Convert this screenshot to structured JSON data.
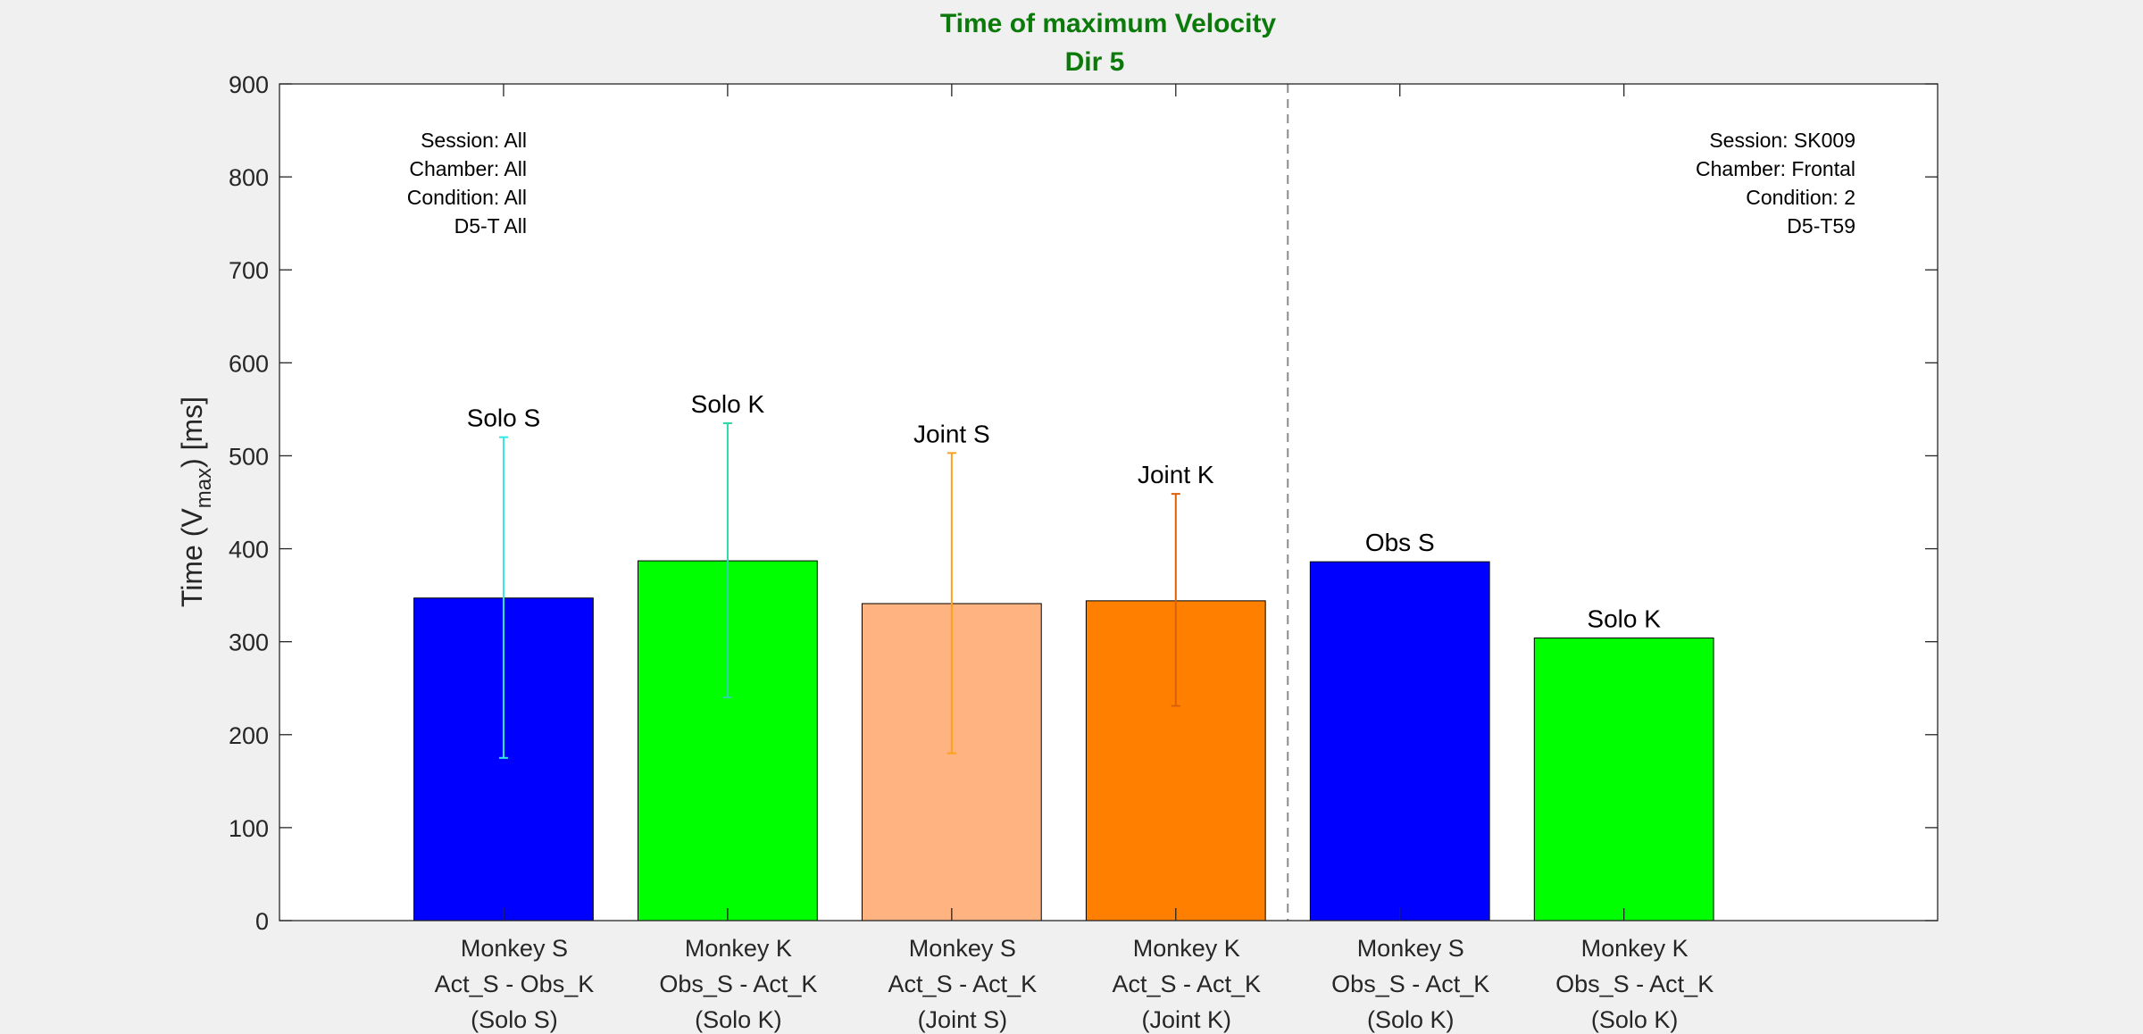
{
  "chart_data": {
    "type": "bar",
    "title": "Time of maximum Velocity",
    "subtitle": "Dir 5",
    "ylabel": "Time (V",
    "ylabel_sub": "max",
    "ylabel_end": ") [ms]",
    "ylim": [
      0,
      900
    ],
    "yticks": [
      0,
      100,
      200,
      300,
      400,
      500,
      600,
      700,
      800,
      900
    ],
    "grid": false,
    "bars": [
      {
        "label": "Solo S",
        "category": [
          "Monkey S",
          "Act_S - Obs_K",
          "(Solo S)"
        ],
        "value": 347,
        "err_low": 175,
        "err_high": 520,
        "color": "#0000ff",
        "err_color": "#33e8e8"
      },
      {
        "label": "Solo K",
        "category": [
          "Monkey K",
          "Obs_S - Act_K",
          "(Solo K)"
        ],
        "value": 387,
        "err_low": 240,
        "err_high": 535,
        "color": "#00ff00",
        "err_color": "#2fd6a8"
      },
      {
        "label": "Joint S",
        "category": [
          "Monkey S",
          "Act_S - Act_K",
          "(Joint S)"
        ],
        "value": 341,
        "err_low": 180,
        "err_high": 503,
        "color": "#ffb380",
        "err_color": "#ff9f1a"
      },
      {
        "label": "Joint K",
        "category": [
          "Monkey K",
          "Act_S - Act_K",
          "(Joint K)"
        ],
        "value": 344,
        "err_low": 231,
        "err_high": 459,
        "color": "#ff8000",
        "err_color": "#d9600a"
      },
      {
        "label": "Obs S",
        "category": [
          "Monkey S",
          "Obs_S - Act_K",
          "(Solo K)"
        ],
        "value": 386,
        "color": "#0000ff"
      },
      {
        "label": "Solo K",
        "category": [
          "Monkey K",
          "Obs_S - Act_K",
          "(Solo K)"
        ],
        "value": 304,
        "color": "#00ff00"
      }
    ],
    "divider_after_bar": 4,
    "annotations": {
      "left": [
        "Session: All",
        "Chamber: All",
        "Condition: All",
        "D5-T All"
      ],
      "right": [
        "Session: SK009",
        "Chamber: Frontal",
        "Condition: 2",
        "D5-T59"
      ]
    }
  }
}
